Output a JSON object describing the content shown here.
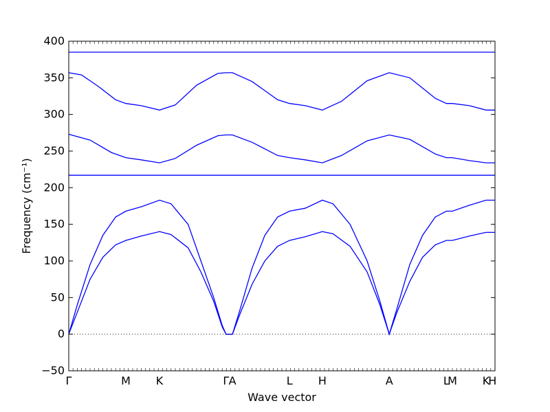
{
  "chart_data": {
    "type": "line",
    "xlabel": "Wave vector",
    "ylabel": "Frequency (cm⁻¹)",
    "ylim": [
      -50,
      400
    ],
    "yticks": [
      -50,
      0,
      50,
      100,
      150,
      200,
      250,
      300,
      350,
      400
    ],
    "grid": false,
    "x_ticks": [
      {
        "label": "Γ",
        "x": 0.0
      },
      {
        "label": "M",
        "x": 0.134
      },
      {
        "label": "K",
        "x": 0.213
      },
      {
        "label": "Γ",
        "x": 0.369
      },
      {
        "label": "A",
        "x": 0.384
      },
      {
        "label": "L",
        "x": 0.518
      },
      {
        "label": "H",
        "x": 0.595
      },
      {
        "label": "A",
        "x": 0.752
      },
      {
        "label": "L",
        "x": 0.886
      },
      {
        "label": "M",
        "x": 0.9
      },
      {
        "label": "K",
        "x": 0.979
      },
      {
        "label": "H",
        "x": 0.994
      }
    ],
    "zero_line": {
      "y": 0,
      "style": "dotted"
    },
    "line_color": "#0000ff",
    "series": [
      {
        "points": [
          [
            0,
            0
          ],
          [
            0.02,
            30
          ],
          [
            0.05,
            75
          ],
          [
            0.08,
            105
          ],
          [
            0.11,
            122
          ],
          [
            0.134,
            128
          ],
          [
            0.17,
            134
          ],
          [
            0.213,
            140
          ],
          [
            0.24,
            136
          ],
          [
            0.28,
            118
          ],
          [
            0.31,
            85
          ],
          [
            0.34,
            45
          ],
          [
            0.36,
            10
          ],
          [
            0.369,
            0
          ],
          [
            0.384,
            0
          ],
          [
            0.4,
            25
          ],
          [
            0.43,
            68
          ],
          [
            0.46,
            100
          ],
          [
            0.49,
            120
          ],
          [
            0.518,
            128
          ],
          [
            0.555,
            133
          ],
          [
            0.595,
            140
          ],
          [
            0.62,
            137
          ],
          [
            0.66,
            120
          ],
          [
            0.7,
            85
          ],
          [
            0.73,
            40
          ],
          [
            0.752,
            0
          ],
          [
            0.77,
            30
          ],
          [
            0.8,
            72
          ],
          [
            0.83,
            105
          ],
          [
            0.86,
            122
          ],
          [
            0.886,
            128
          ],
          [
            0.9,
            128
          ],
          [
            0.94,
            134
          ],
          [
            0.979,
            139
          ],
          [
            1.0,
            139
          ]
        ]
      },
      {
        "points": [
          [
            0,
            0
          ],
          [
            0.02,
            40
          ],
          [
            0.05,
            95
          ],
          [
            0.08,
            135
          ],
          [
            0.11,
            160
          ],
          [
            0.134,
            168
          ],
          [
            0.17,
            174
          ],
          [
            0.213,
            183
          ],
          [
            0.24,
            178
          ],
          [
            0.28,
            150
          ],
          [
            0.31,
            100
          ],
          [
            0.34,
            50
          ],
          [
            0.36,
            12
          ],
          [
            0.369,
            0
          ],
          [
            0.384,
            0
          ],
          [
            0.4,
            30
          ],
          [
            0.43,
            90
          ],
          [
            0.46,
            135
          ],
          [
            0.49,
            160
          ],
          [
            0.518,
            168
          ],
          [
            0.555,
            172
          ],
          [
            0.595,
            183
          ],
          [
            0.62,
            178
          ],
          [
            0.66,
            150
          ],
          [
            0.7,
            100
          ],
          [
            0.73,
            45
          ],
          [
            0.752,
            0
          ],
          [
            0.77,
            35
          ],
          [
            0.8,
            95
          ],
          [
            0.83,
            135
          ],
          [
            0.86,
            160
          ],
          [
            0.886,
            168
          ],
          [
            0.9,
            168
          ],
          [
            0.94,
            176
          ],
          [
            0.979,
            183
          ],
          [
            1.0,
            183
          ]
        ]
      },
      {
        "points": [
          [
            0,
            217
          ],
          [
            1.0,
            217
          ]
        ]
      },
      {
        "points": [
          [
            0,
            273
          ],
          [
            0.05,
            265
          ],
          [
            0.1,
            248
          ],
          [
            0.134,
            241
          ],
          [
            0.17,
            238
          ],
          [
            0.213,
            234
          ],
          [
            0.25,
            240
          ],
          [
            0.3,
            258
          ],
          [
            0.35,
            271
          ],
          [
            0.369,
            272
          ],
          [
            0.384,
            272
          ],
          [
            0.43,
            262
          ],
          [
            0.49,
            244
          ],
          [
            0.518,
            241
          ],
          [
            0.555,
            238
          ],
          [
            0.595,
            234
          ],
          [
            0.64,
            244
          ],
          [
            0.7,
            264
          ],
          [
            0.752,
            272
          ],
          [
            0.8,
            266
          ],
          [
            0.86,
            246
          ],
          [
            0.886,
            241
          ],
          [
            0.9,
            241
          ],
          [
            0.94,
            237
          ],
          [
            0.979,
            234
          ],
          [
            1.0,
            234
          ]
        ]
      },
      {
        "points": [
          [
            0,
            357
          ],
          [
            0.03,
            354
          ],
          [
            0.07,
            338
          ],
          [
            0.11,
            320
          ],
          [
            0.134,
            315
          ],
          [
            0.17,
            312
          ],
          [
            0.213,
            306
          ],
          [
            0.25,
            313
          ],
          [
            0.3,
            340
          ],
          [
            0.35,
            356
          ],
          [
            0.369,
            357
          ],
          [
            0.384,
            357
          ],
          [
            0.43,
            345
          ],
          [
            0.49,
            320
          ],
          [
            0.518,
            315
          ],
          [
            0.555,
            312
          ],
          [
            0.595,
            306
          ],
          [
            0.64,
            318
          ],
          [
            0.7,
            346
          ],
          [
            0.752,
            357
          ],
          [
            0.8,
            350
          ],
          [
            0.86,
            322
          ],
          [
            0.886,
            315
          ],
          [
            0.9,
            315
          ],
          [
            0.94,
            312
          ],
          [
            0.979,
            306
          ],
          [
            1.0,
            306
          ]
        ]
      },
      {
        "points": [
          [
            0,
            385
          ],
          [
            1.0,
            385
          ]
        ]
      }
    ]
  }
}
